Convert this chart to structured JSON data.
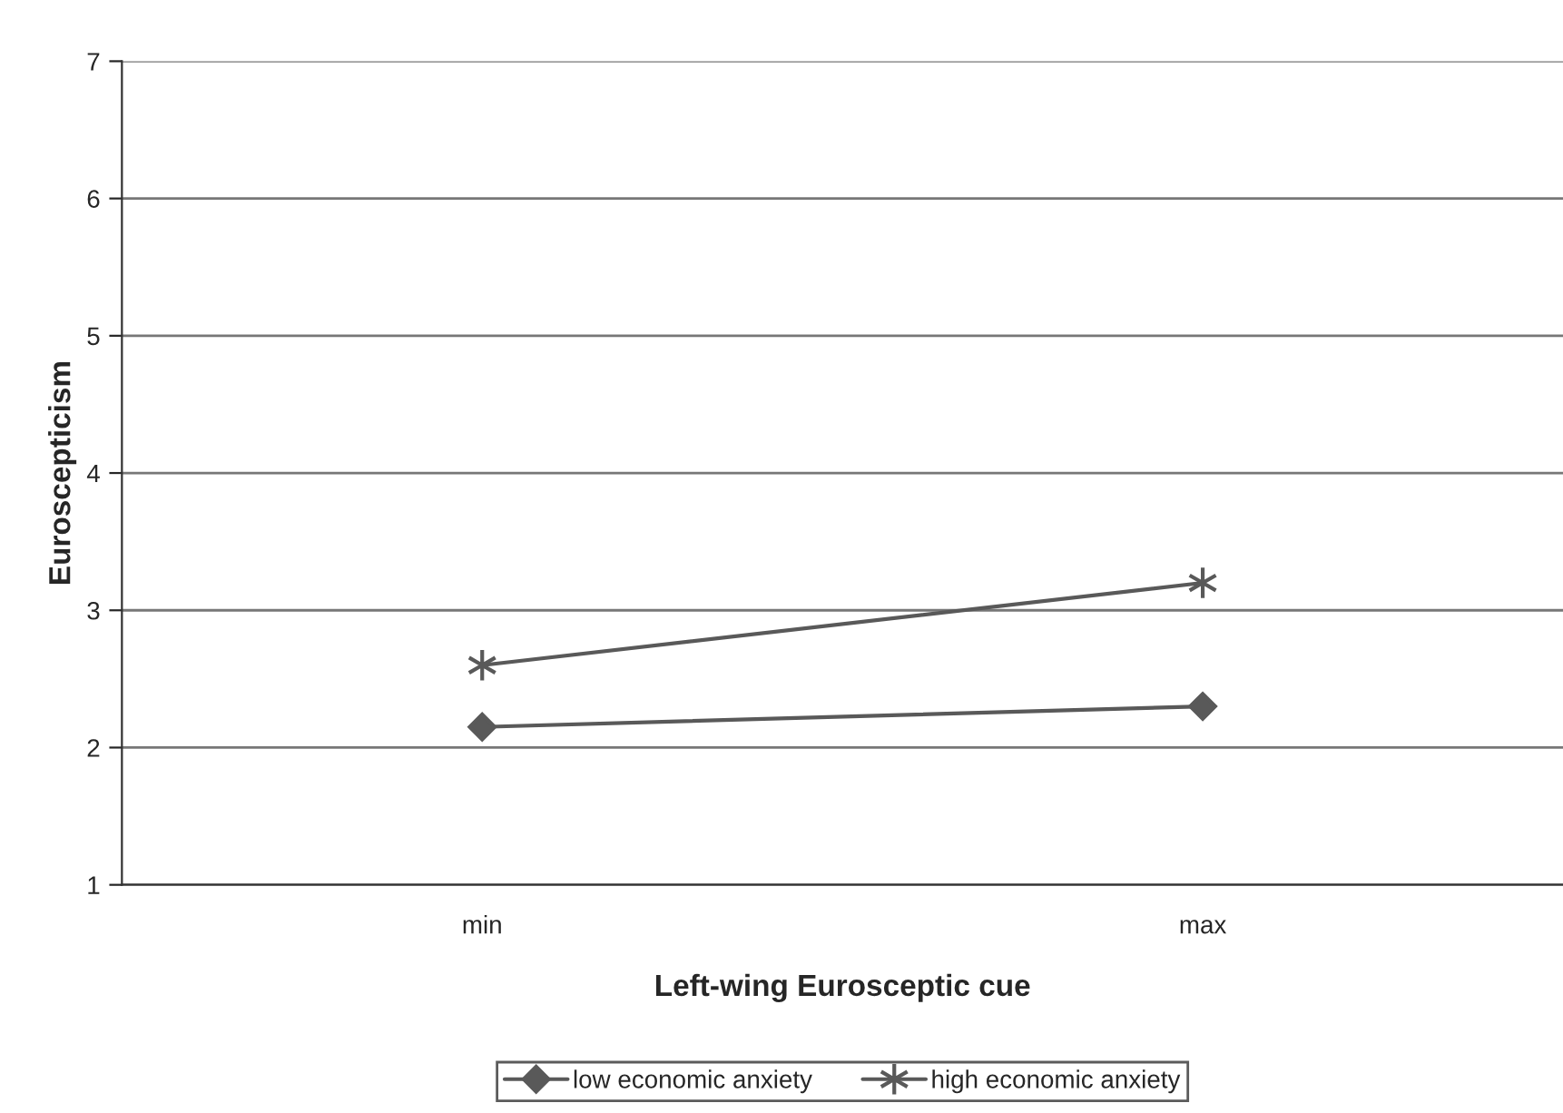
{
  "chart_data": {
    "type": "line",
    "xlabel": "Left-wing Eurosceptic cue",
    "ylabel": "Euroscepticism",
    "categories": [
      "min",
      "max"
    ],
    "series": [
      {
        "name": "low economic anxiety",
        "color": "#595959",
        "marker": "diamond",
        "values": [
          2.15,
          2.3
        ]
      },
      {
        "name": "high economic anxiety",
        "color": "#595959",
        "marker": "cross",
        "values": [
          2.6,
          3.2
        ]
      }
    ],
    "ylim": [
      1,
      7
    ],
    "yticks": [
      1,
      2,
      3,
      4,
      5,
      6,
      7
    ],
    "grid": "y",
    "legend": "bottom",
    "line_style": "solid"
  }
}
